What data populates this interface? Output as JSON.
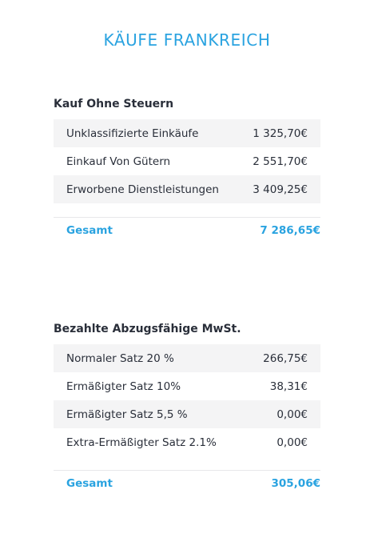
{
  "page": {
    "title": "KÄUFE FRANKREICH"
  },
  "sections": [
    {
      "title": "Kauf Ohne Steuern",
      "rows": [
        {
          "label": "Unklassifizierte Einkäufe",
          "value": "1 325,70€"
        },
        {
          "label": "Einkauf Von Gütern",
          "value": "2 551,70€"
        },
        {
          "label": "Erworbene Dienstleistungen",
          "value": "3 409,25€"
        }
      ],
      "total_label": "Gesamt",
      "total_value": "7 286,65€"
    },
    {
      "title": "Bezahlte Abzugsfähige MwSt.",
      "rows": [
        {
          "label": "Normaler Satz 20 %",
          "value": "266,75€"
        },
        {
          "label": "Ermäßigter Satz 10%",
          "value": "38,31€"
        },
        {
          "label": "Ermäßigter Satz 5,5 %",
          "value": "0,00€"
        },
        {
          "label": "Extra-Ermäßigter Satz 2.1%",
          "value": "0,00€"
        }
      ],
      "total_label": "Gesamt",
      "total_value": "305,06€"
    }
  ],
  "colors": {
    "accent": "#2aa3e0",
    "text": "#2a2f3a",
    "row_stripe": "#f4f4f5"
  }
}
